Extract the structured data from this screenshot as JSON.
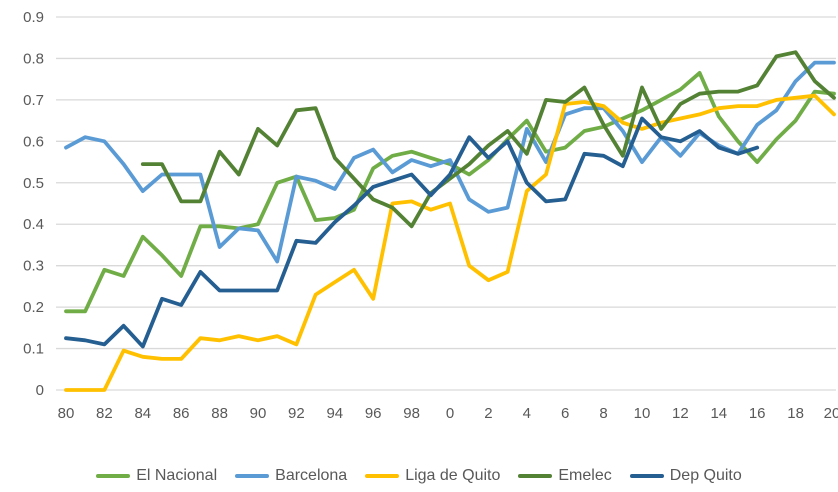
{
  "chart_data": {
    "type": "line",
    "title": "",
    "xlabel": "",
    "ylabel": "",
    "ylim": [
      0,
      0.9
    ],
    "grid": true,
    "legend_position": "bottom",
    "colors": {
      "grid": "#d9d9d9",
      "tick_label": "#595959",
      "background": "#ffffff"
    },
    "y_tick_labels": [
      "0",
      "0.1",
      "0.2",
      "0.3",
      "0.4",
      "0.5",
      "0.6",
      "0.7",
      "0.8",
      "0.9"
    ],
    "x_tick_labels": [
      "80",
      "82",
      "84",
      "86",
      "88",
      "90",
      "92",
      "94",
      "96",
      "98",
      "0",
      "2",
      "4",
      "6",
      "8",
      "10",
      "12",
      "14",
      "16",
      "18",
      "20"
    ],
    "years": [
      1980,
      1981,
      1982,
      1983,
      1984,
      1985,
      1986,
      1987,
      1988,
      1989,
      1990,
      1991,
      1992,
      1993,
      1994,
      1995,
      1996,
      1997,
      1998,
      1999,
      2000,
      2001,
      2002,
      2003,
      2004,
      2005,
      2006,
      2007,
      2008,
      2009,
      2010,
      2011,
      2012,
      2013,
      2014,
      2015,
      2016,
      2017,
      2018,
      2019,
      2020
    ],
    "series": [
      {
        "name": "El Nacional",
        "color": "#70ad47",
        "values": [
          0.19,
          0.19,
          0.29,
          0.275,
          0.37,
          0.325,
          0.275,
          0.395,
          0.395,
          0.39,
          0.4,
          0.5,
          0.515,
          0.41,
          0.415,
          0.435,
          0.535,
          0.565,
          0.575,
          0.56,
          0.545,
          0.52,
          0.555,
          0.605,
          0.65,
          0.575,
          0.585,
          0.625,
          0.635,
          0.655,
          0.675,
          0.7,
          0.725,
          0.765,
          0.66,
          0.6,
          0.55,
          0.605,
          0.65,
          0.72,
          0.715
        ]
      },
      {
        "name": "Barcelona",
        "color": "#5b9bd5",
        "values": [
          0.585,
          0.61,
          0.6,
          0.545,
          0.48,
          0.52,
          0.52,
          0.52,
          0.345,
          0.39,
          0.385,
          0.31,
          0.515,
          0.505,
          0.485,
          0.56,
          0.58,
          0.525,
          0.555,
          0.54,
          0.555,
          0.46,
          0.43,
          0.44,
          0.63,
          0.55,
          0.665,
          0.68,
          0.68,
          0.625,
          0.55,
          0.61,
          0.565,
          0.62,
          0.59,
          0.57,
          0.64,
          0.675,
          0.745,
          0.79,
          0.79
        ]
      },
      {
        "name": "Liga de Quito",
        "color": "#ffc000",
        "values": [
          0.0,
          0.0,
          0.0,
          0.095,
          0.08,
          0.075,
          0.075,
          0.125,
          0.12,
          0.13,
          0.12,
          0.13,
          0.11,
          0.23,
          0.26,
          0.29,
          0.22,
          0.45,
          0.455,
          0.435,
          0.45,
          0.3,
          0.265,
          0.285,
          0.48,
          0.52,
          0.69,
          0.695,
          0.685,
          0.645,
          0.63,
          0.645,
          0.655,
          0.665,
          0.68,
          0.685,
          0.685,
          0.7,
          0.705,
          0.71,
          0.665
        ]
      },
      {
        "name": "Emelec",
        "color": "#548235",
        "values": [
          null,
          null,
          null,
          null,
          0.545,
          0.545,
          0.455,
          0.455,
          0.575,
          0.52,
          0.63,
          0.59,
          0.675,
          0.68,
          0.56,
          0.51,
          0.46,
          0.44,
          0.395,
          0.475,
          0.51,
          0.545,
          0.59,
          0.625,
          0.57,
          0.7,
          0.695,
          0.73,
          0.64,
          0.565,
          0.73,
          0.63,
          0.69,
          0.715,
          0.72,
          0.72,
          0.735,
          0.805,
          0.815,
          0.745,
          0.705
        ]
      },
      {
        "name": "Dep Quito",
        "color": "#255e91",
        "values": [
          0.125,
          0.12,
          0.11,
          0.155,
          0.105,
          0.22,
          0.205,
          0.285,
          0.24,
          0.24,
          0.24,
          0.24,
          0.36,
          0.355,
          0.405,
          0.445,
          0.49,
          0.505,
          0.52,
          0.47,
          0.52,
          0.61,
          0.56,
          0.6,
          0.5,
          0.455,
          0.46,
          0.57,
          0.565,
          0.54,
          0.655,
          0.61,
          0.6,
          0.625,
          0.585,
          0.57,
          0.585,
          null,
          null,
          null,
          null
        ]
      }
    ]
  }
}
